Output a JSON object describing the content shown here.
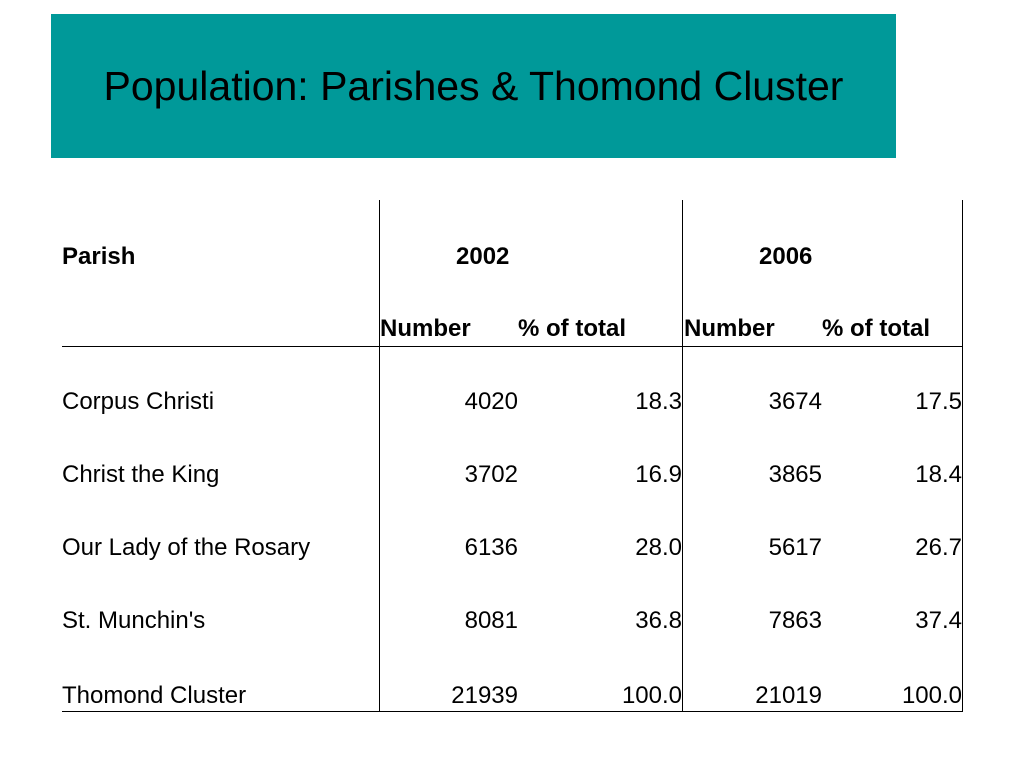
{
  "title": "Population: Parishes & Thomond Cluster",
  "colors": {
    "title_background": "#009999"
  },
  "table": {
    "header": {
      "parish": "Parish",
      "year1": "2002",
      "year2": "2006",
      "number": "Number",
      "pct": "% of total"
    },
    "rows": [
      {
        "parish": "Corpus Christi",
        "n2002": "4020",
        "p2002": "18.3",
        "n2006": "3674",
        "p2006": "17.5"
      },
      {
        "parish": "Christ the King",
        "n2002": "3702",
        "p2002": "16.9",
        "n2006": "3865",
        "p2006": "18.4"
      },
      {
        "parish": "Our Lady of the Rosary",
        "n2002": "6136",
        "p2002": "28.0",
        "n2006": "5617",
        "p2006": "26.7"
      },
      {
        "parish": "St. Munchin's",
        "n2002": "8081",
        "p2002": "36.8",
        "n2006": "7863",
        "p2006": "37.4"
      },
      {
        "parish": "Thomond Cluster",
        "n2002": "21939",
        "p2002": "100.0",
        "n2006": "21019",
        "p2006": "100.0"
      }
    ]
  }
}
